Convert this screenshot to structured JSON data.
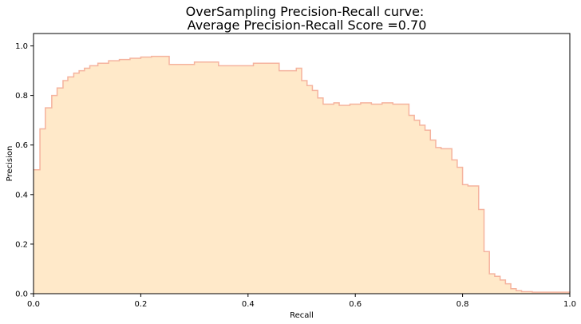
{
  "chart_data": {
    "type": "area",
    "title_line1": "OverSampling Precision-Recall curve:",
    "title_line2": " Average Precision-Recall Score =0.70",
    "xlabel": "Recall",
    "ylabel": "Precision",
    "xlim": [
      0,
      1
    ],
    "ylim": [
      0,
      1.05
    ],
    "xticks": [
      "0.0",
      "0.2",
      "0.4",
      "0.6",
      "0.8",
      "1.0"
    ],
    "yticks": [
      "0.0",
      "0.2",
      "0.4",
      "0.6",
      "0.8",
      "1.0"
    ],
    "grid": false,
    "fill_color": "#FFE9C9",
    "line_color": "#F5B39E",
    "step": "post",
    "series": [
      {
        "recall": [
          0.0,
          0.012,
          0.022,
          0.034,
          0.044,
          0.055,
          0.064,
          0.075,
          0.085,
          0.095,
          0.105,
          0.12,
          0.14,
          0.16,
          0.18,
          0.2,
          0.22,
          0.253,
          0.3,
          0.345,
          0.41,
          0.458,
          0.49,
          0.5,
          0.51,
          0.52,
          0.53,
          0.54,
          0.56,
          0.57,
          0.59,
          0.61,
          0.63,
          0.65,
          0.67,
          0.7,
          0.71,
          0.72,
          0.73,
          0.74,
          0.75,
          0.76,
          0.78,
          0.79,
          0.8,
          0.81,
          0.83,
          0.84,
          0.85,
          0.86,
          0.87,
          0.88,
          0.89,
          0.9,
          0.91,
          0.93,
          1.0
        ],
        "precision": [
          0.5,
          0.665,
          0.75,
          0.8,
          0.83,
          0.86,
          0.875,
          0.89,
          0.9,
          0.91,
          0.92,
          0.93,
          0.94,
          0.945,
          0.95,
          0.955,
          0.958,
          0.925,
          0.935,
          0.92,
          0.93,
          0.9,
          0.91,
          0.86,
          0.84,
          0.82,
          0.79,
          0.765,
          0.77,
          0.76,
          0.765,
          0.77,
          0.765,
          0.77,
          0.765,
          0.72,
          0.7,
          0.68,
          0.66,
          0.62,
          0.59,
          0.585,
          0.54,
          0.51,
          0.44,
          0.435,
          0.34,
          0.17,
          0.08,
          0.07,
          0.055,
          0.04,
          0.02,
          0.012,
          0.008,
          0.006,
          0.005
        ]
      }
    ]
  }
}
